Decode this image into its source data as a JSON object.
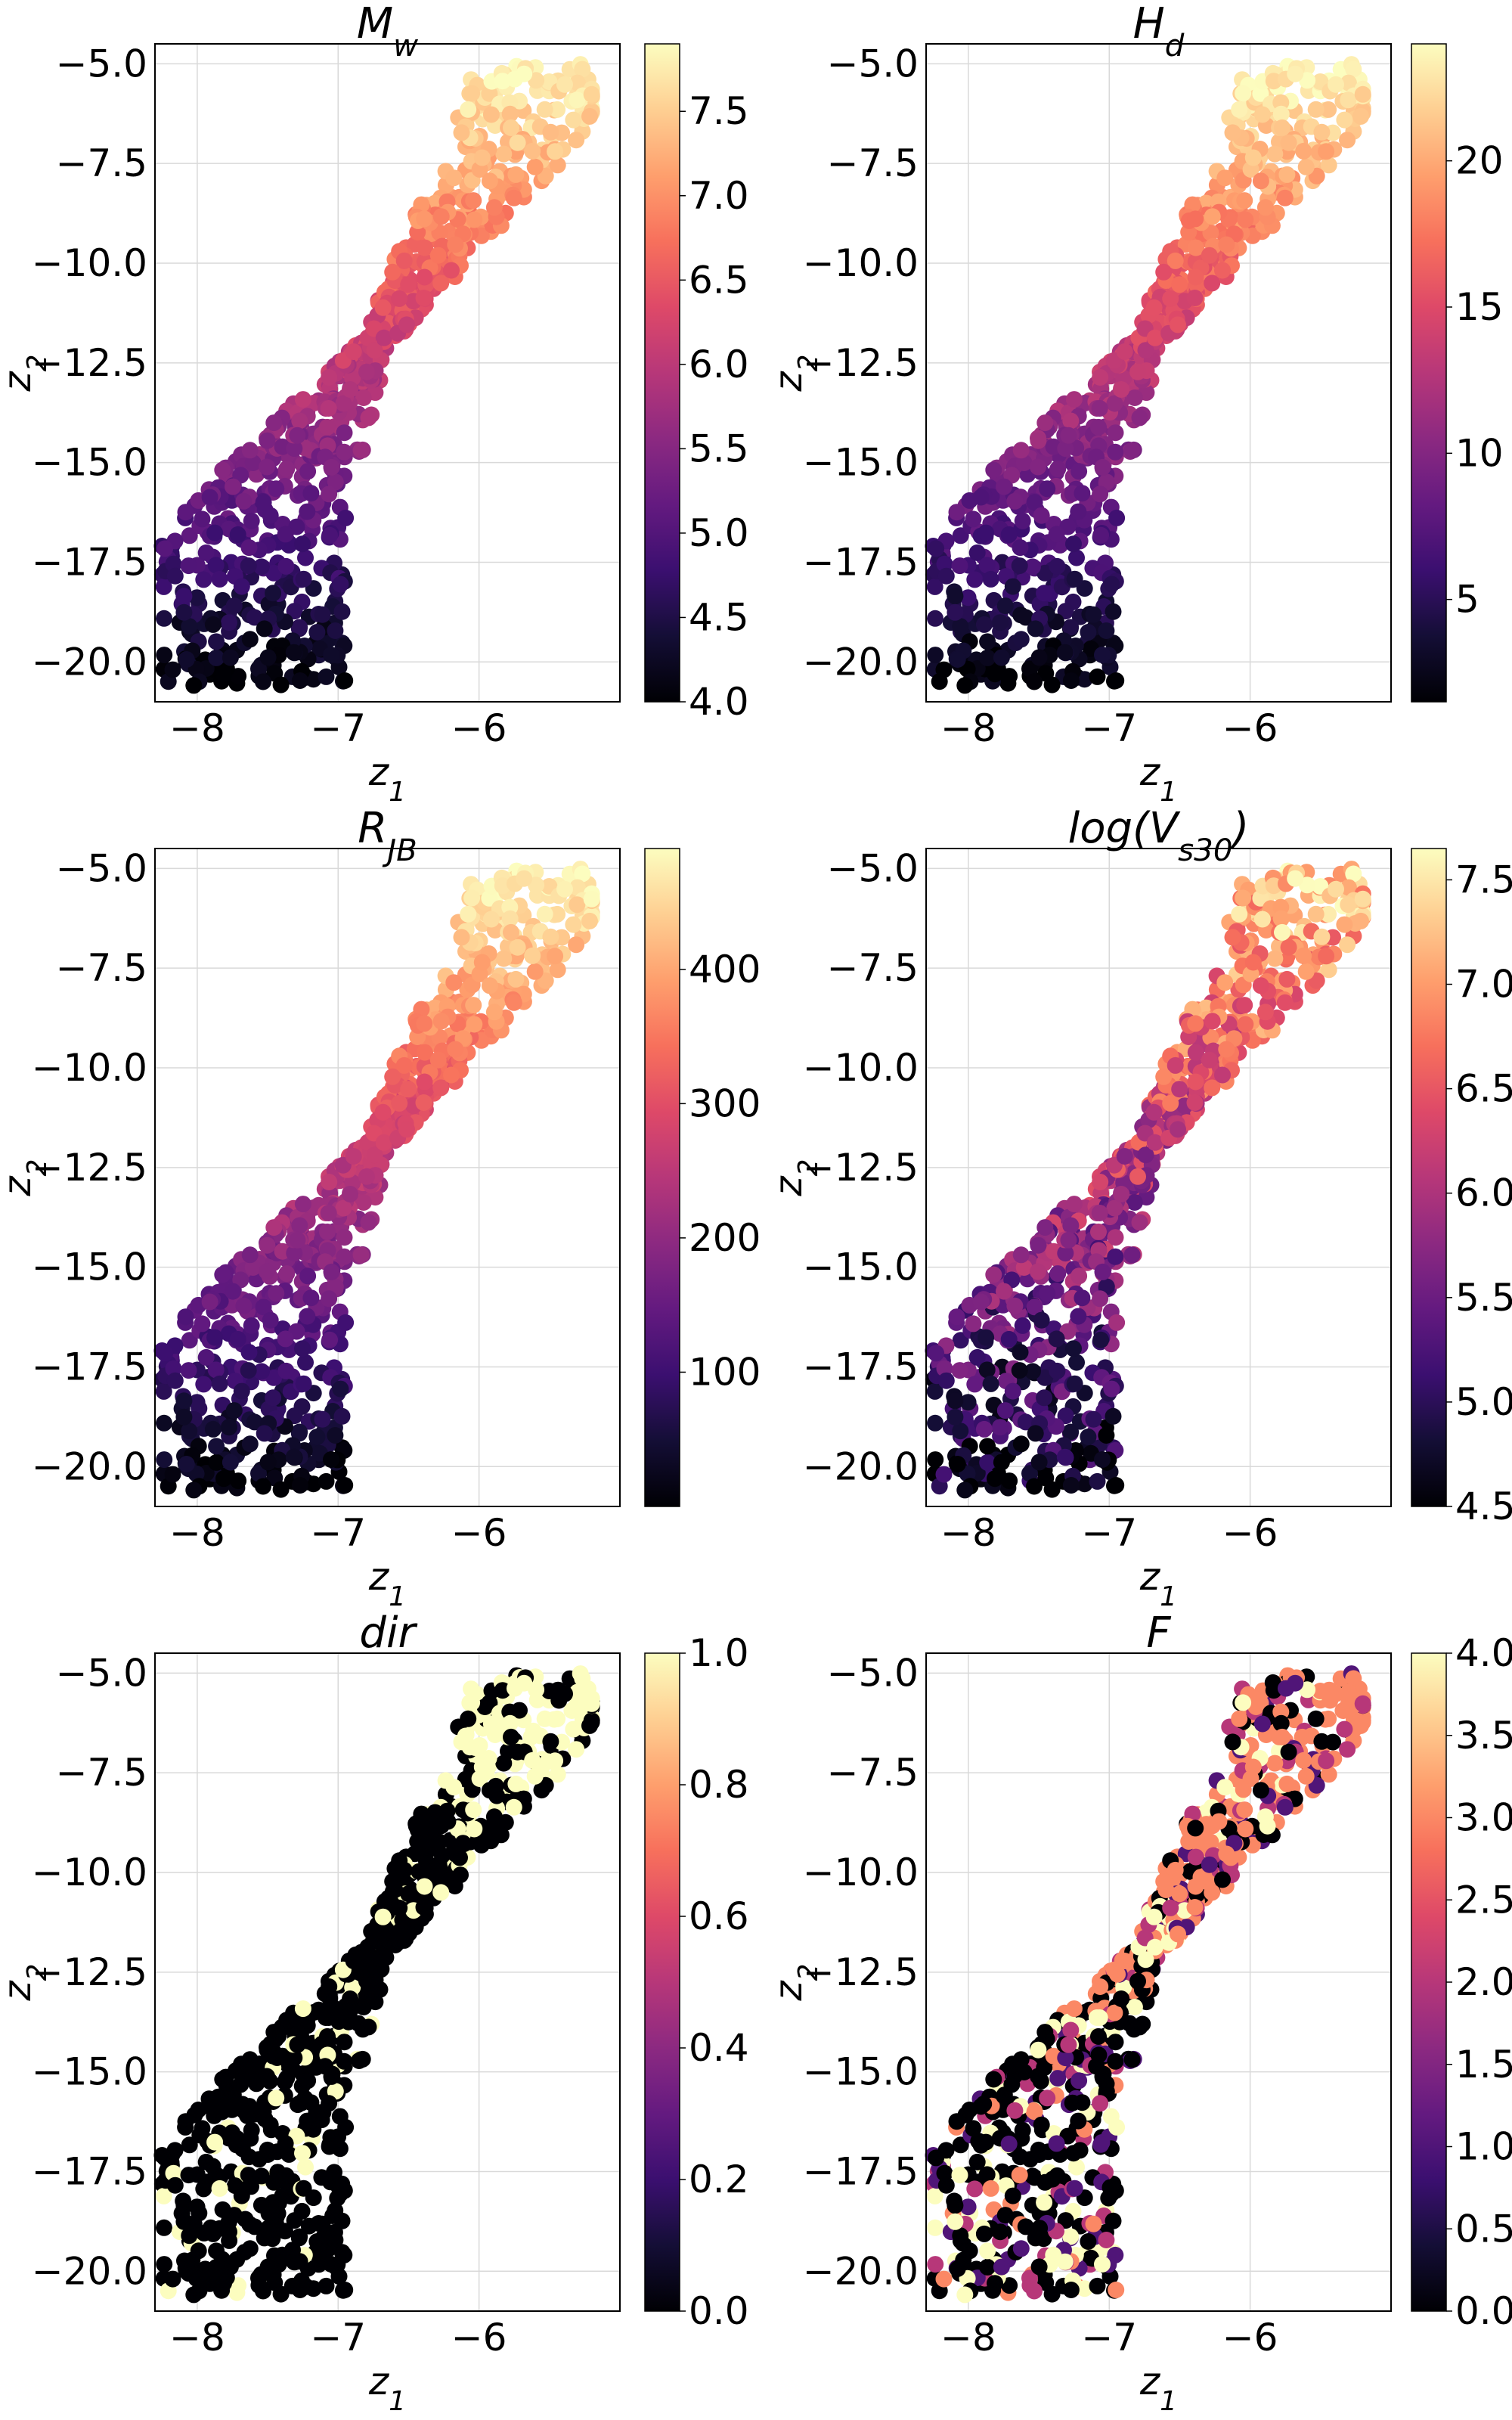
{
  "figure": {
    "colormap": "magma",
    "grid": true
  },
  "colormap_stops": [
    "#000004",
    "#140e36",
    "#3b0f70",
    "#641a80",
    "#8c2981",
    "#b73779",
    "#de4968",
    "#f7705c",
    "#fe9f6d",
    "#fecf92",
    "#fcfdbf"
  ],
  "chart_data": [
    {
      "type": "scatter",
      "title": "M_w",
      "title_main": "M",
      "title_sub": "w",
      "xlabel_main": "z",
      "xlabel_sub": "1",
      "ylabel_main": "z",
      "ylabel_sub": "2",
      "xlim": [
        -8.3,
        -5.0
      ],
      "ylim": [
        -21.0,
        -4.5
      ],
      "xticks": [
        -8,
        -7,
        -6
      ],
      "xtick_labels": [
        "−8",
        "−7",
        "−6"
      ],
      "yticks": [
        -5.0,
        -7.5,
        -10.0,
        -12.5,
        -15.0,
        -17.5,
        -20.0
      ],
      "ytick_labels": [
        "−5.0",
        "−7.5",
        "−10.0",
        "−12.5",
        "−15.0",
        "−17.5",
        "−20.0"
      ],
      "color_range": [
        4.0,
        7.9
      ],
      "colorbar_ticks": [
        4.0,
        4.5,
        5.0,
        5.5,
        6.0,
        6.5,
        7.0,
        7.5
      ],
      "colorbar_tick_labels": [
        "4.0",
        "4.5",
        "5.0",
        "5.5",
        "6.0",
        "6.5",
        "7.0",
        "7.5"
      ],
      "color_pattern": "gradient"
    },
    {
      "type": "scatter",
      "title": "H_d",
      "title_main": "H",
      "title_sub": "d",
      "xlabel_main": "z",
      "xlabel_sub": "1",
      "ylabel_main": "z",
      "ylabel_sub": "2",
      "xlim": [
        -8.3,
        -5.0
      ],
      "ylim": [
        -21.0,
        -4.5
      ],
      "xticks": [
        -8,
        -7,
        -6
      ],
      "xtick_labels": [
        "−8",
        "−7",
        "−6"
      ],
      "yticks": [
        -5.0,
        -7.5,
        -10.0,
        -12.5,
        -15.0,
        -17.5,
        -20.0
      ],
      "ytick_labels": [
        "−5.0",
        "−7.5",
        "−10.0",
        "−12.5",
        "−15.0",
        "−17.5",
        "−20.0"
      ],
      "color_range": [
        1.5,
        24.0
      ],
      "colorbar_ticks": [
        5,
        10,
        15,
        20
      ],
      "colorbar_tick_labels": [
        "5",
        "10",
        "15",
        "20"
      ],
      "color_pattern": "gradient"
    },
    {
      "type": "scatter",
      "title": "R_JB",
      "title_main": "R",
      "title_sub": "JB",
      "xlabel_main": "z",
      "xlabel_sub": "1",
      "ylabel_main": "z",
      "ylabel_sub": "2",
      "xlim": [
        -8.3,
        -5.0
      ],
      "ylim": [
        -21.0,
        -4.5
      ],
      "xticks": [
        -8,
        -7,
        -6
      ],
      "xtick_labels": [
        "−8",
        "−7",
        "−6"
      ],
      "yticks": [
        -5.0,
        -7.5,
        -10.0,
        -12.5,
        -15.0,
        -17.5,
        -20.0
      ],
      "ytick_labels": [
        "−5.0",
        "−7.5",
        "−10.0",
        "−12.5",
        "−15.0",
        "−17.5",
        "−20.0"
      ],
      "color_range": [
        0,
        490
      ],
      "colorbar_ticks": [
        100,
        200,
        300,
        400
      ],
      "colorbar_tick_labels": [
        "100",
        "200",
        "300",
        "400"
      ],
      "color_pattern": "gradient"
    },
    {
      "type": "scatter",
      "title": "log(V_s30)",
      "title_main": "log(V",
      "title_sub": "s30",
      "title_suffix": ")",
      "xlabel_main": "z",
      "xlabel_sub": "1",
      "ylabel_main": "z",
      "ylabel_sub": "2",
      "xlim": [
        -8.3,
        -5.0
      ],
      "ylim": [
        -21.0,
        -4.5
      ],
      "xticks": [
        -8,
        -7,
        -6
      ],
      "xtick_labels": [
        "−8",
        "−7",
        "−6"
      ],
      "yticks": [
        -5.0,
        -7.5,
        -10.0,
        -12.5,
        -15.0,
        -17.5,
        -20.0
      ],
      "ytick_labels": [
        "−5.0",
        "−7.5",
        "−10.0",
        "−12.5",
        "−15.0",
        "−17.5",
        "−20.0"
      ],
      "color_range": [
        4.5,
        7.65
      ],
      "colorbar_ticks": [
        4.5,
        5.0,
        5.5,
        6.0,
        6.5,
        7.0,
        7.5
      ],
      "colorbar_tick_labels": [
        "4.5",
        "5.0",
        "5.5",
        "6.0",
        "6.5",
        "7.0",
        "7.5"
      ],
      "color_pattern": "noisy_gradient"
    },
    {
      "type": "scatter",
      "title": "dir",
      "title_main": "dir",
      "xlabel_main": "z",
      "xlabel_sub": "1",
      "ylabel_main": "z",
      "ylabel_sub": "2",
      "xlim": [
        -8.3,
        -5.0
      ],
      "ylim": [
        -21.0,
        -4.5
      ],
      "xticks": [
        -8,
        -7,
        -6
      ],
      "xtick_labels": [
        "−8",
        "−7",
        "−6"
      ],
      "yticks": [
        -5.0,
        -7.5,
        -10.0,
        -12.5,
        -15.0,
        -17.5,
        -20.0
      ],
      "ytick_labels": [
        "−5.0",
        "−7.5",
        "−10.0",
        "−12.5",
        "−15.0",
        "−17.5",
        "−20.0"
      ],
      "color_range": [
        0.0,
        1.0
      ],
      "colorbar_ticks": [
        0.0,
        0.2,
        0.4,
        0.6,
        0.8,
        1.0
      ],
      "colorbar_tick_labels": [
        "0.0",
        "0.2",
        "0.4",
        "0.6",
        "0.8",
        "1.0"
      ],
      "color_pattern": "binary"
    },
    {
      "type": "scatter",
      "title": "F",
      "title_main": "F",
      "xlabel_main": "z",
      "xlabel_sub": "1",
      "ylabel_main": "z",
      "ylabel_sub": "2",
      "xlim": [
        -8.3,
        -5.0
      ],
      "ylim": [
        -21.0,
        -4.5
      ],
      "xticks": [
        -8,
        -7,
        -6
      ],
      "xtick_labels": [
        "−8",
        "−7",
        "−6"
      ],
      "yticks": [
        -5.0,
        -7.5,
        -10.0,
        -12.5,
        -15.0,
        -17.5,
        -20.0
      ],
      "ytick_labels": [
        "−5.0",
        "−7.5",
        "−10.0",
        "−12.5",
        "−15.0",
        "−17.5",
        "−20.0"
      ],
      "color_range": [
        0.0,
        4.0
      ],
      "colorbar_ticks": [
        0.0,
        0.5,
        1.0,
        1.5,
        2.0,
        2.5,
        3.0,
        3.5,
        4.0
      ],
      "colorbar_tick_labels": [
        "0.0",
        "0.5",
        "1.0",
        "1.5",
        "2.0",
        "2.5",
        "3.0",
        "3.5",
        "4.0"
      ],
      "color_pattern": "categorical"
    }
  ]
}
